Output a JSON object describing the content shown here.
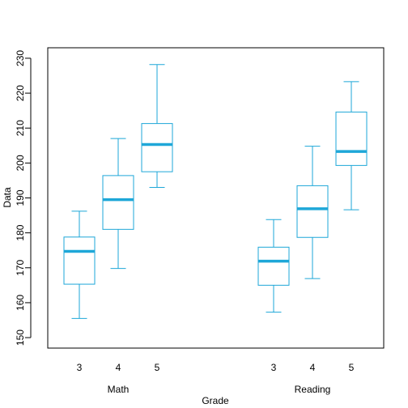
{
  "chart_data": {
    "type": "boxplot",
    "title": "",
    "xlabel": "Grade",
    "ylabel": "Data",
    "ylim": [
      147,
      233
    ],
    "yticks": [
      150,
      160,
      170,
      180,
      190,
      200,
      210,
      220,
      230
    ],
    "grid": false,
    "legend": "none",
    "box_color": "#1EA7D8",
    "groups": [
      {
        "name": "Math",
        "boxes": [
          {
            "category": "3",
            "min": 155.5,
            "q1": 165.3,
            "median": 174.7,
            "q3": 178.8,
            "max": 186.2
          },
          {
            "category": "4",
            "min": 169.8,
            "q1": 181.0,
            "median": 189.5,
            "q3": 196.4,
            "max": 207.0
          },
          {
            "category": "5",
            "min": 193.0,
            "q1": 197.5,
            "median": 205.3,
            "q3": 211.3,
            "max": 228.2
          }
        ]
      },
      {
        "name": "Reading",
        "boxes": [
          {
            "category": "3",
            "min": 157.3,
            "q1": 165.0,
            "median": 171.9,
            "q3": 175.9,
            "max": 183.8
          },
          {
            "category": "4",
            "min": 166.9,
            "q1": 178.7,
            "median": 186.9,
            "q3": 193.5,
            "max": 204.8
          },
          {
            "category": "5",
            "min": 186.6,
            "q1": 199.3,
            "median": 203.3,
            "q3": 214.6,
            "max": 223.3
          }
        ]
      }
    ]
  }
}
